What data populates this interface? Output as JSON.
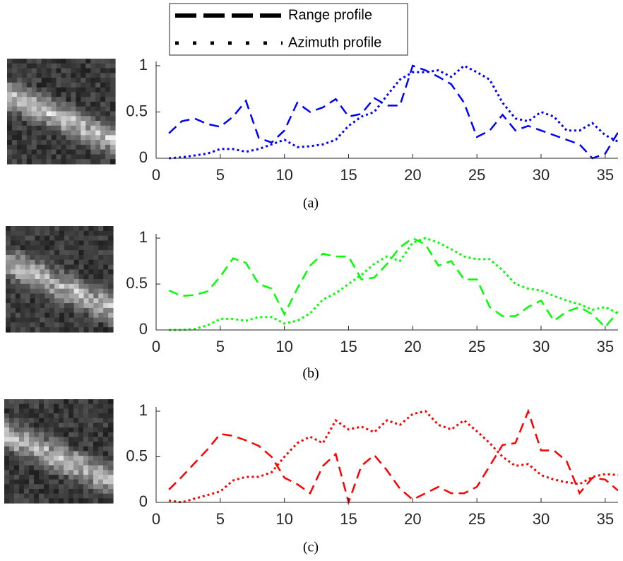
{
  "chart_data": [
    {
      "type": "line",
      "caption": "(a)",
      "x": [
        1,
        2,
        3,
        4,
        5,
        6,
        7,
        8,
        9,
        10,
        11,
        12,
        13,
        14,
        15,
        16,
        17,
        18,
        19,
        20,
        21,
        22,
        23,
        24,
        25,
        26,
        27,
        28,
        29,
        30,
        31,
        32,
        33,
        34,
        35,
        36
      ],
      "xlim": [
        0,
        36
      ],
      "xticks": [
        0,
        5,
        10,
        15,
        20,
        25,
        30,
        35
      ],
      "ylim": [
        0,
        1
      ],
      "yticks": [
        0,
        0.5,
        1
      ],
      "series": [
        {
          "name": "Range profile",
          "color": "#0000ff",
          "style": "dashed",
          "values": [
            0.27,
            0.4,
            0.43,
            0.37,
            0.34,
            0.45,
            0.62,
            0.22,
            0.17,
            0.3,
            0.6,
            0.5,
            0.55,
            0.64,
            0.45,
            0.48,
            0.65,
            0.57,
            0.57,
            1.0,
            0.95,
            0.88,
            0.8,
            0.6,
            0.23,
            0.3,
            0.47,
            0.3,
            0.35,
            0.3,
            0.25,
            0.2,
            0.15,
            0.0,
            0.05,
            0.28
          ]
        },
        {
          "name": "Azimuth profile",
          "color": "#0000ff",
          "style": "dotted",
          "values": [
            0,
            0.01,
            0.03,
            0.05,
            0.1,
            0.1,
            0.07,
            0.1,
            0.15,
            0.2,
            0.12,
            0.13,
            0.15,
            0.2,
            0.35,
            0.45,
            0.5,
            0.68,
            0.85,
            0.93,
            0.93,
            0.95,
            0.88,
            1.0,
            0.93,
            0.85,
            0.6,
            0.43,
            0.4,
            0.5,
            0.45,
            0.3,
            0.3,
            0.38,
            0.25,
            0.18
          ]
        }
      ]
    },
    {
      "type": "line",
      "caption": "(b)",
      "x": [
        1,
        2,
        3,
        4,
        5,
        6,
        7,
        8,
        9,
        10,
        11,
        12,
        13,
        14,
        15,
        16,
        17,
        18,
        19,
        20,
        21,
        22,
        23,
        24,
        25,
        26,
        27,
        28,
        29,
        30,
        31,
        32,
        33,
        34,
        35,
        36
      ],
      "xlim": [
        0,
        36
      ],
      "xticks": [
        0,
        5,
        10,
        15,
        20,
        25,
        30,
        35
      ],
      "ylim": [
        0,
        1
      ],
      "yticks": [
        0,
        0.5,
        1
      ],
      "series": [
        {
          "color": "#00ff00",
          "style": "dashed",
          "values": [
            0.43,
            0.37,
            0.38,
            0.42,
            0.58,
            0.78,
            0.73,
            0.5,
            0.45,
            0.17,
            0.45,
            0.7,
            0.83,
            0.8,
            0.8,
            0.55,
            0.57,
            0.72,
            0.9,
            1.0,
            0.93,
            0.7,
            0.75,
            0.55,
            0.55,
            0.25,
            0.15,
            0.15,
            0.25,
            0.32,
            0.1,
            0.2,
            0.25,
            0.17,
            0.03,
            0.2
          ]
        },
        {
          "color": "#00ff00",
          "style": "dotted",
          "values": [
            0,
            0,
            0.01,
            0.05,
            0.12,
            0.12,
            0.1,
            0.14,
            0.14,
            0.07,
            0.1,
            0.18,
            0.33,
            0.4,
            0.5,
            0.6,
            0.72,
            0.8,
            0.75,
            0.95,
            1.0,
            0.95,
            0.88,
            0.8,
            0.77,
            0.77,
            0.65,
            0.5,
            0.45,
            0.43,
            0.37,
            0.32,
            0.28,
            0.22,
            0.25,
            0.18
          ]
        }
      ]
    },
    {
      "type": "line",
      "caption": "(c)",
      "x": [
        1,
        2,
        3,
        4,
        5,
        6,
        7,
        8,
        9,
        10,
        11,
        12,
        13,
        14,
        15,
        16,
        17,
        18,
        19,
        20,
        21,
        22,
        23,
        24,
        25,
        26,
        27,
        28,
        29,
        30,
        31,
        32,
        33,
        34,
        35,
        36
      ],
      "xlim": [
        0,
        36
      ],
      "xticks": [
        0,
        5,
        10,
        15,
        20,
        25,
        30,
        35
      ],
      "ylim": [
        0,
        1
      ],
      "yticks": [
        0,
        0.5,
        1
      ],
      "series": [
        {
          "color": "#ff0000",
          "style": "dashed",
          "values": [
            0.14,
            0.28,
            0.43,
            0.58,
            0.75,
            0.73,
            0.68,
            0.62,
            0.5,
            0.27,
            0.2,
            0.1,
            0.4,
            0.53,
            0.0,
            0.4,
            0.52,
            0.35,
            0.15,
            0.03,
            0.1,
            0.17,
            0.1,
            0.1,
            0.17,
            0.4,
            0.63,
            0.65,
            1.0,
            0.57,
            0.57,
            0.45,
            0.1,
            0.27,
            0.25,
            0.13
          ]
        },
        {
          "color": "#ff0000",
          "style": "dotted",
          "values": [
            0.02,
            0,
            0.04,
            0.08,
            0.12,
            0.24,
            0.28,
            0.28,
            0.33,
            0.5,
            0.65,
            0.72,
            0.65,
            0.9,
            0.8,
            0.83,
            0.77,
            0.9,
            0.85,
            0.97,
            1.0,
            0.85,
            0.8,
            0.9,
            0.78,
            0.65,
            0.5,
            0.4,
            0.42,
            0.3,
            0.25,
            0.22,
            0.2,
            0.28,
            0.31,
            0.3
          ]
        }
      ]
    }
  ]
}
